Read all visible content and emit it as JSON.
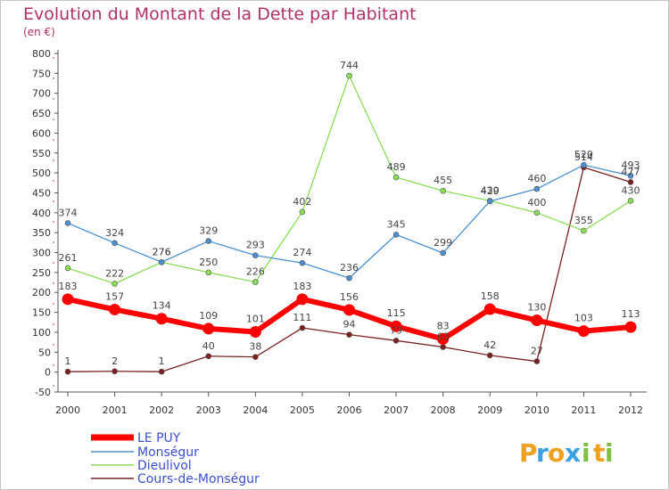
{
  "chart_data": {
    "type": "line",
    "title": "Evolution du Montant de la Dette par Habitant",
    "subtitle": "(en €)",
    "categories": [
      "2000",
      "2001",
      "2002",
      "2003",
      "2004",
      "2005",
      "2006",
      "2007",
      "2008",
      "2009",
      "2010",
      "2011",
      "2012"
    ],
    "ylim": [
      -50,
      800
    ],
    "yticks": [
      -50,
      0,
      50,
      100,
      150,
      200,
      250,
      300,
      350,
      400,
      450,
      500,
      550,
      600,
      650,
      700,
      750,
      800
    ],
    "grid": false,
    "legend_position": "bottom-left",
    "series": [
      {
        "name": "LE PUY",
        "color": "#ff0000",
        "values": [
          183,
          157,
          134,
          109,
          101,
          183,
          156,
          115,
          83,
          158,
          130,
          103,
          113
        ]
      },
      {
        "name": "Monségur",
        "color": "#4a90d0",
        "values": [
          374,
          324,
          276,
          329,
          293,
          274,
          236,
          345,
          299,
          429,
          460,
          520,
          493
        ]
      },
      {
        "name": "Dieulivol",
        "color": "#88dd55",
        "values": [
          261,
          222,
          276,
          250,
          226,
          402,
          744,
          489,
          455,
          430,
          400,
          355,
          430
        ]
      },
      {
        "name": "Cours-de-Monségur",
        "color": "#7a2020",
        "values": [
          1,
          2,
          1,
          40,
          38,
          111,
          94,
          79,
          63,
          42,
          27,
          514,
          477
        ]
      }
    ]
  },
  "logo": {
    "letters": [
      "P",
      "r",
      "o",
      "x",
      "i",
      "t",
      "i"
    ],
    "colors": [
      "#f0a020",
      "#3aa0e0",
      "#f0a020",
      "#3aa0e0",
      "#80c040",
      "#f0a020",
      "#80c040"
    ]
  }
}
